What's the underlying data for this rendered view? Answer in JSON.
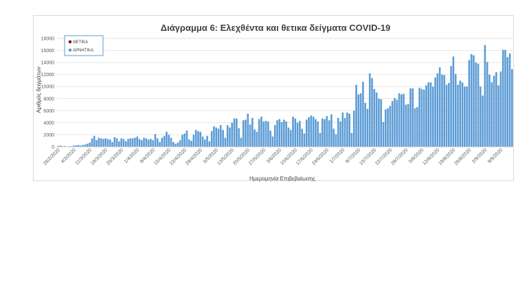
{
  "chart_data": {
    "type": "bar",
    "title": "Διάγραμμα 6: Ελεχθέντα και θετικα δείγματα COVID-19",
    "xlabel": "Ημερομηνία Επιβεβαίωσης",
    "ylabel": "Αριθμός δειγμάτων",
    "ylim": [
      0,
      18000
    ],
    "yticks": [
      0,
      2000,
      4000,
      6000,
      8000,
      10000,
      12000,
      14000,
      16000,
      18000
    ],
    "grid": true,
    "legend_position": "top-left",
    "stacked": true,
    "x_tick_labels": [
      "26/2/2020",
      "4/3/2020",
      "11/3/2020",
      "18/3/2020",
      "25/3/2020",
      "1/4/2020",
      "8/4/2020",
      "15/4/2020",
      "22/4/2020",
      "29/4/2020",
      "6/5/2020",
      "13/5/2020",
      "20/5/2020",
      "27/5/2020",
      "3/6/2020",
      "10/6/2020",
      "17/6/2020",
      "24/6/2020",
      "1/7/2020",
      "8/7/2020",
      "15/7/2020",
      "22/7/2020",
      "29/7/2020",
      "5/8/2020",
      "12/8/2020",
      "19/8/2020",
      "26/8/2020",
      "2/9/2020",
      "9/9/2020"
    ],
    "series": [
      {
        "name": "ΘΕΤΙΚΑ",
        "color": "#8b1a1a",
        "values": [
          0,
          0,
          0,
          0,
          0,
          0,
          0,
          0,
          0,
          0,
          0,
          0,
          0,
          0,
          0,
          0,
          0,
          0,
          0,
          0,
          0,
          0,
          0,
          0,
          0,
          0,
          0,
          0,
          0,
          0,
          0,
          0,
          0,
          0,
          0,
          0,
          0,
          0,
          0,
          0,
          0,
          0,
          0,
          0,
          0,
          0,
          0,
          0,
          0,
          0,
          0,
          0,
          0,
          0,
          0,
          0,
          0,
          0,
          0,
          0,
          0,
          0,
          0,
          0,
          0,
          0,
          0,
          0,
          0,
          0,
          0,
          0,
          0,
          0,
          0,
          0,
          0,
          0,
          0,
          0,
          0,
          0,
          0,
          0,
          0,
          0,
          0,
          0,
          0,
          0,
          0,
          0,
          0,
          0,
          0,
          0,
          0,
          0,
          0,
          0,
          0,
          0,
          0,
          0,
          0,
          0,
          0,
          0,
          0,
          0,
          0,
          0,
          0,
          0,
          0,
          0,
          0,
          0,
          0,
          0,
          0,
          0,
          0,
          0,
          0,
          0,
          0,
          0,
          0,
          0,
          0,
          0,
          0,
          0,
          0,
          0,
          0,
          0,
          0,
          0,
          0,
          0,
          0,
          0,
          0,
          0,
          0,
          0,
          0,
          0,
          0,
          0,
          0,
          0,
          0,
          0,
          0,
          0,
          0,
          0,
          0,
          0,
          0,
          0,
          0,
          0,
          0,
          0,
          0,
          0,
          0,
          0,
          0,
          0,
          0,
          0,
          0,
          0,
          0,
          0,
          0,
          0,
          0,
          0,
          0,
          0,
          0,
          0,
          0,
          0,
          0,
          0,
          0,
          0,
          0,
          0,
          0,
          0,
          0,
          0,
          0,
          0,
          0,
          0,
          0,
          0,
          0,
          0
        ]
      },
      {
        "name": "ΑΡΝΗΤΙΚΑ",
        "color": "#5b9bd5",
        "values": [
          150,
          200,
          100,
          120,
          0,
          80,
          100,
          200,
          250,
          300,
          200,
          300,
          400,
          500,
          700,
          1400,
          1800,
          1100,
          1500,
          1400,
          1300,
          1400,
          1300,
          1200,
          800,
          1600,
          1400,
          900,
          1400,
          1300,
          900,
          1300,
          1400,
          1400,
          1500,
          1700,
          1300,
          1100,
          1500,
          1400,
          1200,
          1300,
          1100,
          2100,
          1400,
          800,
          1500,
          1800,
          2500,
          2000,
          1500,
          800,
          500,
          700,
          1100,
          2000,
          2200,
          2700,
          1200,
          1000,
          2000,
          2800,
          2600,
          2500,
          1700,
          1200,
          1800,
          900,
          2600,
          3400,
          3200,
          3000,
          3600,
          2800,
          1500,
          3600,
          3200,
          4000,
          4700,
          4700,
          3100,
          1500,
          4400,
          4500,
          5500,
          3700,
          4800,
          2900,
          2500,
          4600,
          5000,
          4200,
          4300,
          4200,
          2700,
          1700,
          3600,
          4400,
          4600,
          4100,
          4500,
          4200,
          3200,
          2800,
          5000,
          4700,
          4000,
          4300,
          3000,
          2200,
          4500,
          4900,
          5200,
          5000,
          4600,
          4200,
          2300,
          4700,
          4600,
          5100,
          4400,
          5400,
          3000,
          2100,
          4800,
          4200,
          5700,
          4800,
          5700,
          5500,
          2300,
          6000,
          10300,
          8700,
          8900,
          10800,
          7300,
          6300,
          12200,
          11400,
          9600,
          9000,
          8000,
          7900,
          4100,
          6200,
          6400,
          6800,
          7600,
          8100,
          7800,
          8900,
          8700,
          8800,
          7000,
          7100,
          9700,
          9700,
          6400,
          6600,
          9800,
          9600,
          9500,
          10200,
          10700,
          10700,
          10000,
          11500,
          12200,
          13200,
          12000,
          11900,
          10300,
          10600,
          13400,
          15000,
          12100,
          10300,
          11000,
          10700,
          10000,
          10000,
          14400,
          15400,
          15200,
          14000,
          13800,
          10000,
          8500,
          16900,
          14100,
          12000,
          10700,
          11800,
          12400,
          10200,
          12500,
          16100,
          16100,
          14900,
          15500,
          12900
        ]
      }
    ]
  }
}
